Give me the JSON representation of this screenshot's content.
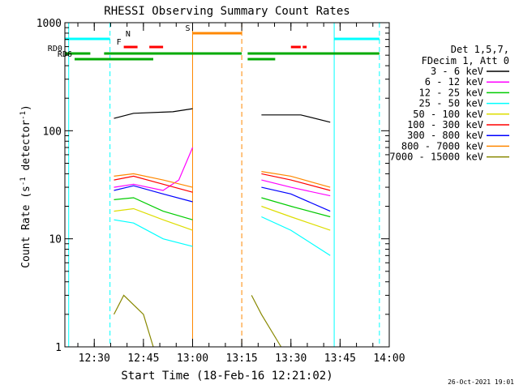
{
  "chart_data": {
    "type": "line",
    "title": "RHESSI Observing Summary Count Rates",
    "xlabel": "Start Time (18-Feb-16 12:21:02)",
    "ylabel_main": "Count Rate (s",
    "ylabel_sup1": "-1",
    "ylabel_mid": " detector",
    "ylabel_sup2": "-1",
    "ylabel_end": ")",
    "y_scale": "log",
    "ylim": [
      1,
      1000
    ],
    "xlim": [
      "12:21:02",
      "14:00:00"
    ],
    "y_ticks": [
      "1",
      "10",
      "100",
      "1000"
    ],
    "x_ticks": [
      "12:30",
      "12:45",
      "13:00",
      "13:15",
      "13:30",
      "13:45",
      "14:00"
    ],
    "timestamp": "26-Oct-2021 19:01",
    "legend_header": [
      "Det 1,5,7,",
      "FDecim 1, Att 0"
    ],
    "legend_position": "right",
    "series": [
      {
        "name": "3 - 6 keV",
        "color": "#000000",
        "segments": [
          [
            [
              12.6,
              130
            ],
            [
              12.7,
              145
            ],
            [
              12.9,
              150
            ],
            [
              13.0,
              160
            ]
          ],
          [
            [
              13.35,
              140
            ],
            [
              13.55,
              140
            ],
            [
              13.7,
              120
            ]
          ]
        ]
      },
      {
        "name": "6 - 12 keV",
        "color": "#ff00ff",
        "segments": [
          [
            [
              12.6,
              30
            ],
            [
              12.7,
              32
            ],
            [
              12.85,
              28
            ],
            [
              12.93,
              35
            ],
            [
              13.0,
              70
            ]
          ],
          [
            [
              13.35,
              35
            ],
            [
              13.5,
              30
            ],
            [
              13.7,
              25
            ]
          ]
        ]
      },
      {
        "name": "12 - 25 keV",
        "color": "#00cc00",
        "segments": [
          [
            [
              12.6,
              23
            ],
            [
              12.7,
              24
            ],
            [
              12.85,
              18
            ],
            [
              13.0,
              15
            ]
          ],
          [
            [
              13.35,
              24
            ],
            [
              13.5,
              20
            ],
            [
              13.7,
              16
            ]
          ]
        ]
      },
      {
        "name": "25 - 50 keV",
        "color": "#00ffff",
        "segments": [
          [
            [
              12.6,
              15
            ],
            [
              12.7,
              14
            ],
            [
              12.85,
              10
            ],
            [
              13.0,
              8.5
            ]
          ],
          [
            [
              13.35,
              16
            ],
            [
              13.5,
              12
            ],
            [
              13.7,
              7
            ]
          ]
        ]
      },
      {
        "name": "50 - 100 keV",
        "color": "#dddd00",
        "segments": [
          [
            [
              12.6,
              18
            ],
            [
              12.7,
              19
            ],
            [
              12.85,
              15
            ],
            [
              13.0,
              12
            ]
          ],
          [
            [
              13.35,
              20
            ],
            [
              13.5,
              16
            ],
            [
              13.7,
              12
            ]
          ]
        ]
      },
      {
        "name": "100 - 300 keV",
        "color": "#ff0000",
        "segments": [
          [
            [
              12.6,
              35
            ],
            [
              12.7,
              38
            ],
            [
              12.85,
              32
            ],
            [
              13.0,
              27
            ]
          ],
          [
            [
              13.35,
              40
            ],
            [
              13.5,
              35
            ],
            [
              13.7,
              28
            ]
          ]
        ]
      },
      {
        "name": "300 - 800 keV",
        "color": "#0000ff",
        "segments": [
          [
            [
              12.6,
              28
            ],
            [
              12.7,
              31
            ],
            [
              12.85,
              26
            ],
            [
              13.0,
              22
            ]
          ],
          [
            [
              13.35,
              30
            ],
            [
              13.5,
              26
            ],
            [
              13.7,
              18
            ]
          ]
        ]
      },
      {
        "name": "800 - 7000 keV",
        "color": "#ff8800",
        "segments": [
          [
            [
              12.6,
              38
            ],
            [
              12.7,
              40
            ],
            [
              12.85,
              35
            ],
            [
              13.0,
              30
            ]
          ],
          [
            [
              13.35,
              42
            ],
            [
              13.5,
              38
            ],
            [
              13.7,
              30
            ]
          ]
        ]
      },
      {
        "name": "7000 - 15000 keV",
        "color": "#888800",
        "segments": [
          [
            [
              12.6,
              2
            ],
            [
              12.65,
              3
            ],
            [
              12.75,
              2
            ],
            [
              12.8,
              1
            ]
          ],
          [
            [
              13.3,
              3
            ],
            [
              13.35,
              2
            ],
            [
              13.45,
              1
            ]
          ]
        ]
      }
    ],
    "flag_bars": [
      {
        "label": "N",
        "color": "#00ffff",
        "segments": [
          [
            12.35,
            12.58
          ],
          [
            13.72,
            13.95
          ]
        ]
      },
      {
        "label": "S",
        "color": "#ff8800",
        "segments": [
          [
            13.0,
            13.25
          ]
        ]
      },
      {
        "label": "F",
        "color": "#ff0000",
        "segments": [
          [
            12.65,
            12.72
          ],
          [
            12.78,
            12.85
          ],
          [
            13.5,
            13.55
          ],
          [
            13.56,
            13.58
          ]
        ]
      },
      {
        "label": "RD0",
        "color": "#00aa00",
        "segments": [
          [
            12.35,
            12.48
          ],
          [
            12.55,
            13.25
          ],
          [
            13.28,
            13.95
          ]
        ]
      },
      {
        "label": "RD6",
        "color": "#00aa00",
        "segments": [
          [
            12.4,
            12.8
          ],
          [
            13.28,
            13.42
          ]
        ]
      }
    ],
    "markers": [
      {
        "x": 12.37,
        "color": "#00ffff",
        "style": "solid"
      },
      {
        "x": 12.58,
        "color": "#00ffff",
        "style": "dashed"
      },
      {
        "x": 13.0,
        "color": "#ff8800",
        "style": "solid"
      },
      {
        "x": 13.25,
        "color": "#ff8800",
        "style": "dashed"
      },
      {
        "x": 13.72,
        "color": "#00ffff",
        "style": "solid"
      },
      {
        "x": 13.95,
        "color": "#00ffff",
        "style": "dashed"
      }
    ]
  }
}
